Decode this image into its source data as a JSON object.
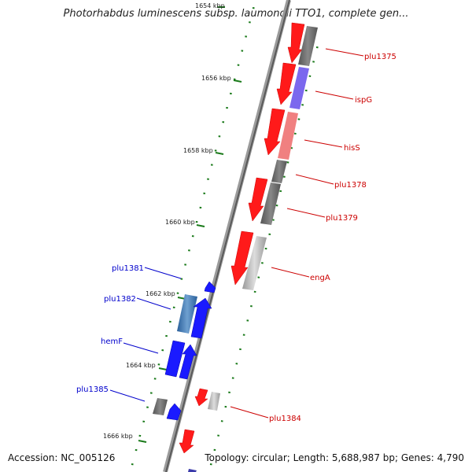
{
  "title": "Photorhabdus luminescens subsp. laumondii TTO1, complete gen...",
  "footer": {
    "accession": "Accession: NC_005126",
    "summary": "Topology: circular; Length: 5,688,987 bp; Genes: 4,790"
  },
  "colors": {
    "forward": "#ff0000",
    "reverse": "#0000ff",
    "tick": "#1a7a1a",
    "backbone": "#888888"
  },
  "ticks": [
    {
      "label": "1654 kbp",
      "pos": 1654
    },
    {
      "label": "1656 kbp",
      "pos": 1656
    },
    {
      "label": "1658 kbp",
      "pos": 1658
    },
    {
      "label": "1660 kbp",
      "pos": 1660
    },
    {
      "label": "1662 kbp",
      "pos": 1662
    },
    {
      "label": "1664 kbp",
      "pos": 1664
    },
    {
      "label": "1666 kbp",
      "pos": 1666
    }
  ],
  "gene_labels_right": [
    {
      "label": "plu1375"
    },
    {
      "label": "ispG"
    },
    {
      "label": "hisS"
    },
    {
      "label": "plu1378"
    },
    {
      "label": "plu1379"
    },
    {
      "label": "engA"
    },
    {
      "label": "plu1384"
    }
  ],
  "gene_labels_left": [
    {
      "label": "plu1381"
    },
    {
      "label": "plu1382"
    },
    {
      "label": "hemF"
    },
    {
      "label": "plu1385"
    }
  ]
}
